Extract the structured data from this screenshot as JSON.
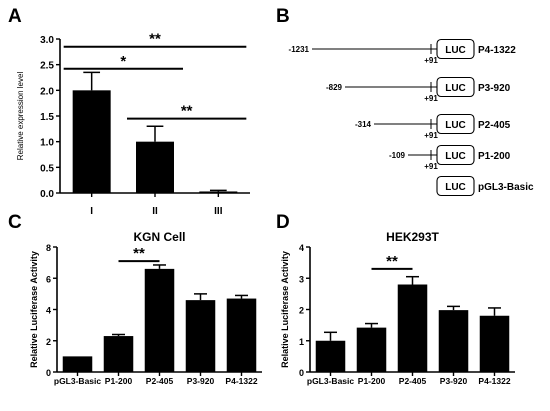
{
  "panels": {
    "A": {
      "letter": "A"
    },
    "B": {
      "letter": "B"
    },
    "C": {
      "letter": "C"
    },
    "D": {
      "letter": "D"
    }
  },
  "chart_data": [
    {
      "panel": "A",
      "type": "bar",
      "title": "",
      "xlabel": "",
      "ylabel": "Relative expression  level",
      "categories": [
        "I",
        "II",
        "III"
      ],
      "values": [
        2.0,
        1.0,
        0.03
      ],
      "errors": [
        0.35,
        0.3,
        0.02
      ],
      "ylim": [
        0,
        3.0
      ],
      "yticks": [
        "0.0",
        "0.5",
        "1.0",
        "1.5",
        "2.0",
        "2.5",
        "3.0"
      ],
      "significance": [
        {
          "from": 0,
          "to": 2,
          "label": "**",
          "level": 2.85
        },
        {
          "from": 0,
          "to": 1,
          "label": "*",
          "level": 2.42
        },
        {
          "from": 1,
          "to": 2,
          "label": "**",
          "level": 1.45
        }
      ],
      "colors": {
        "bar": "#000000"
      }
    },
    {
      "panel": "B",
      "type": "diagram",
      "constructs": [
        {
          "start": "-1231",
          "end": "+91",
          "box": "LUC",
          "name": "P4-1322"
        },
        {
          "start": "-829",
          "end": "+91",
          "box": "LUC",
          "name": "P3-920"
        },
        {
          "start": "-314",
          "end": "+91",
          "box": "LUC",
          "name": "P2-405"
        },
        {
          "start": "-109",
          "end": "+91",
          "box": "LUC",
          "name": "P1-200"
        },
        {
          "start": "",
          "end": "",
          "box": "LUC",
          "name": "pGL3-Basic"
        }
      ]
    },
    {
      "panel": "C",
      "type": "bar",
      "title": "KGN Cell",
      "xlabel": "",
      "ylabel": "Relative Luciferase Activity",
      "categories": [
        "pGL3-Basic",
        "P1-200",
        "P2-405",
        "P3-920",
        "P4-1322"
      ],
      "values": [
        1.0,
        2.3,
        6.6,
        4.6,
        4.7
      ],
      "errors": [
        0.0,
        0.1,
        0.25,
        0.4,
        0.2
      ],
      "ylim": [
        0,
        8
      ],
      "yticks": [
        "0",
        "2",
        "4",
        "6",
        "8"
      ],
      "significance": [
        {
          "from": 1,
          "to": 2,
          "label": "**",
          "level": 7.1
        }
      ],
      "colors": {
        "bar": "#000000"
      }
    },
    {
      "panel": "D",
      "type": "bar",
      "title": "HEK293T",
      "xlabel": "",
      "ylabel": "Relative Luciferase Activity",
      "categories": [
        "pGL3-Basic",
        "P1-200",
        "P2-405",
        "P3-920",
        "P4-1322"
      ],
      "values": [
        1.0,
        1.42,
        2.8,
        1.98,
        1.8
      ],
      "errors": [
        0.27,
        0.13,
        0.25,
        0.12,
        0.25
      ],
      "ylim": [
        0,
        4
      ],
      "yticks": [
        "0",
        "1",
        "2",
        "3",
        "4"
      ],
      "significance": [
        {
          "from": 1,
          "to": 2,
          "label": "**",
          "level": 3.3
        }
      ],
      "colors": {
        "bar": "#000000"
      }
    }
  ]
}
